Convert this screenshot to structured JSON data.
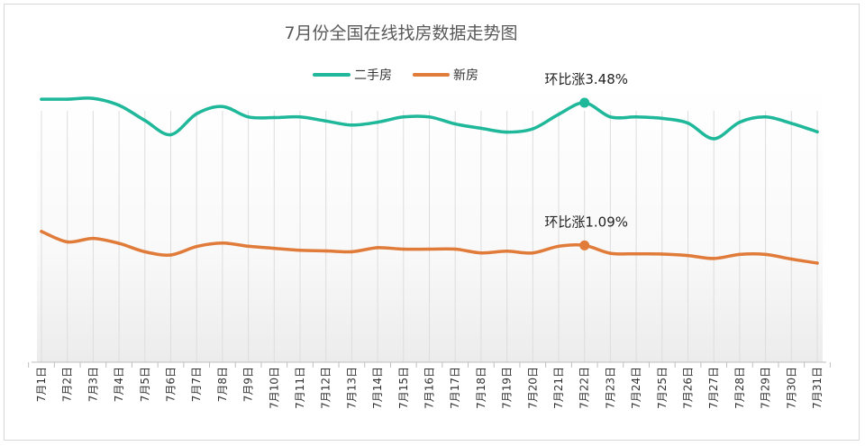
{
  "chart_data": {
    "type": "line",
    "title": "7月份全国在线找房数据走势图",
    "categories": [
      "7月1日",
      "7月2日",
      "7月3日",
      "7月4日",
      "7月5日",
      "7月6日",
      "7月7日",
      "7月8日",
      "7月9日",
      "7月10日",
      "7月11日",
      "7月12日",
      "7月13日",
      "7月14日",
      "7月15日",
      "7月16日",
      "7月17日",
      "7月18日",
      "7月19日",
      "7月20日",
      "7月21日",
      "7月22日",
      "7月23日",
      "7月24日",
      "7月25日",
      "7月26日",
      "7月27日",
      "7月28日",
      "7月29日",
      "7月30日",
      "7月31日"
    ],
    "series": [
      {
        "name": "二手房",
        "color": "#1fb89a",
        "values": [
          90.5,
          90.5,
          90.8,
          88.4,
          83.2,
          78.3,
          85.5,
          88.0,
          84.4,
          84.2,
          84.4,
          83.0,
          81.6,
          82.6,
          84.4,
          84.4,
          82.0,
          80.5,
          79.2,
          80.3,
          85.3,
          89.3,
          84.4,
          84.4,
          83.9,
          82.3,
          76.9,
          82.6,
          84.4,
          82.2,
          79.3
        ]
      },
      {
        "name": "新房",
        "color": "#e07b39",
        "values": [
          45.0,
          41.4,
          42.6,
          40.9,
          38.0,
          36.9,
          39.8,
          41.0,
          39.9,
          39.2,
          38.5,
          38.3,
          38.0,
          39.4,
          38.9,
          38.9,
          38.9,
          37.6,
          38.2,
          37.6,
          39.9,
          40.2,
          37.5,
          37.3,
          37.2,
          36.7,
          35.7,
          37.1,
          37.1,
          35.5,
          34.1
        ]
      }
    ],
    "annotations": [
      {
        "text": "环比涨3.48%",
        "series": 0,
        "index": 21
      },
      {
        "text": "环比涨1.09%",
        "series": 1,
        "index": 21
      }
    ],
    "legend_position": "top-center",
    "grid": "vertical",
    "ylim": [
      0,
      120
    ]
  }
}
